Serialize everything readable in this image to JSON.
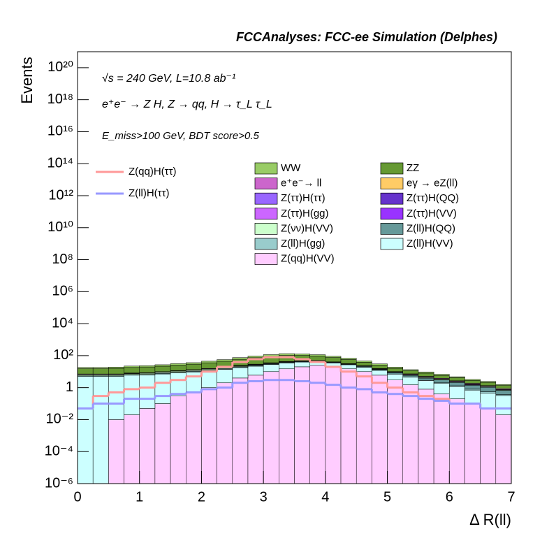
{
  "chart_data": {
    "type": "stacked-histogram",
    "title": "FCCAnalyses: FCC-ee Simulation (Delphes)",
    "x_label": "Δ R(ll)",
    "y_label": "Events",
    "annotations": [
      "√s = 240 GeV, L=10.8 ab⁻¹",
      "e⁺e⁻ → Z H, Z → qq, H → τ_L τ_L",
      "E_miss>100 GeV, BDT score>0.5"
    ],
    "log": true,
    "bins": [
      0,
      0.25,
      0.5,
      0.75,
      1,
      1.25,
      1.5,
      1.75,
      2,
      2.25,
      2.5,
      2.75,
      3,
      3.25,
      3.5,
      3.75,
      4,
      4.25,
      4.5,
      4.75,
      5,
      5.25,
      5.5,
      5.75,
      6,
      6.25,
      6.5,
      6.75,
      7
    ],
    "xlim": [
      0,
      7
    ],
    "xticks": [
      0,
      1,
      2,
      3,
      4,
      5,
      6,
      7
    ],
    "ylim": [
      1e-06,
      1e+21
    ],
    "yticks": [
      {
        "value": 1e-06,
        "label": "10⁻⁶"
      },
      {
        "value": 0.0001,
        "label": "10⁻⁴"
      },
      {
        "value": 0.01,
        "label": "10⁻²"
      },
      1,
      {
        "value": 100.0,
        "label": "10²"
      },
      {
        "value": 10000.0,
        "label": "10⁴"
      },
      {
        "value": 1000000.0,
        "label": "10⁶"
      },
      {
        "value": 100000000.0,
        "label": "10⁸"
      },
      {
        "value": 10000000000.0,
        "label": "10¹⁰"
      },
      {
        "value": 1000000000000.0,
        "label": "10¹²"
      },
      {
        "value": 100000000000000.0,
        "label": "10¹⁴"
      },
      {
        "value": 1e+16,
        "label": "10¹⁶"
      },
      {
        "value": 1e+18,
        "label": "10¹⁸"
      },
      {
        "value": 1e+20,
        "label": "10²⁰"
      }
    ],
    "series": [
      {
        "name": "WW",
        "color": "#99cc66",
        "values": [
          3,
          3,
          3,
          4,
          4,
          5,
          6,
          7,
          9,
          12,
          16,
          20,
          25,
          30,
          25,
          20,
          15,
          12,
          8,
          5,
          3,
          2,
          1.5,
          1,
          0.6,
          0.4,
          0.3,
          0.2
        ]
      },
      {
        "name": "ZZ",
        "color": "#669933",
        "values": [
          8,
          8,
          9,
          10,
          11,
          12,
          14,
          16,
          20,
          25,
          35,
          45,
          55,
          60,
          55,
          45,
          35,
          25,
          15,
          10,
          6,
          4,
          3,
          2,
          1.5,
          1,
          0.8,
          0.5
        ]
      },
      {
        "name": "e⁺e⁻→ ll",
        "color": "#cc66cc",
        "values": [
          0.5,
          0.5,
          0.5,
          0.5,
          0.5,
          0.6,
          0.6,
          0.8,
          1,
          1,
          1.2,
          1.5,
          1.5,
          1.5,
          1.5,
          1.2,
          1,
          1,
          0.8,
          0.6,
          0.5,
          0.5,
          0.4,
          0.3,
          0.2,
          0.2,
          0.1,
          0.1
        ]
      },
      {
        "name": "eγ → eZ(ll)",
        "color": "#ffcc66",
        "values": [
          0,
          0,
          0,
          0,
          0,
          0,
          0,
          0,
          0,
          0,
          0,
          0,
          0,
          0.1,
          0,
          0,
          0,
          0,
          0.1,
          0,
          0,
          0.1,
          0,
          0,
          0,
          0,
          0,
          0
        ]
      },
      {
        "name": "Z(ττ)H(ττ)",
        "color": "#9966ff",
        "values": [
          0.05,
          0.03,
          0.05,
          0.05,
          0.08,
          0.1,
          0.1,
          0.1,
          0.15,
          0.2,
          0.2,
          0.2,
          0.2,
          0.2,
          0.2,
          0.15,
          0.15,
          0.1,
          0.1,
          0.1,
          0.08,
          0.05,
          0.05,
          0.05,
          0.03,
          0.02,
          0.02,
          0.01
        ]
      },
      {
        "name": "Z(ττ)H(QQ)",
        "color": "#6633cc",
        "values": [
          0,
          0,
          0.01,
          0.01,
          0.02,
          0.02,
          0.05,
          0.05,
          0.1,
          0.2,
          0.3,
          0.4,
          0.5,
          0.5,
          0.4,
          0.3,
          0.3,
          0.2,
          0.2,
          0.15,
          0.1,
          0.1,
          0.1,
          0.05,
          0.05,
          0.02,
          0.02,
          0.01
        ]
      },
      {
        "name": "Z(ττ)H(gg)",
        "color": "#cc66ff",
        "values": [
          0,
          0,
          0,
          0.01,
          0.01,
          0.02,
          0.02,
          0.03,
          0.05,
          0.05,
          0.08,
          0.1,
          0.1,
          0.1,
          0.1,
          0.08,
          0.08,
          0.05,
          0.05,
          0.05,
          0.03,
          0.03,
          0.02,
          0.02,
          0.01,
          0.01,
          0,
          0
        ]
      },
      {
        "name": "Z(ττ)H(VV)",
        "color": "#9933ff",
        "values": [
          0.1,
          0.1,
          0.1,
          0.1,
          0.15,
          0.2,
          0.2,
          0.3,
          0.3,
          0.4,
          0.5,
          0.5,
          0.5,
          0.5,
          0.5,
          0.4,
          0.4,
          0.3,
          0.3,
          0.3,
          0.2,
          0.2,
          0.2,
          0.1,
          0.1,
          0.1,
          0.05,
          0.02
        ]
      },
      {
        "name": "Z(νν)H(VV)",
        "color": "#ccffcc",
        "values": [
          1,
          1,
          1,
          1,
          1.2,
          1.2,
          1.5,
          1.5,
          2,
          2,
          2,
          2,
          2,
          2,
          2,
          1.5,
          1.5,
          1.2,
          1,
          0.8,
          0.6,
          0.5,
          0.4,
          0.3,
          0.2,
          0.1,
          0.1,
          0.05
        ]
      },
      {
        "name": "Z(ll)H(QQ)",
        "color": "#669999",
        "values": [
          0.5,
          0.5,
          0.5,
          0.6,
          0.6,
          0.7,
          0.8,
          1,
          1.2,
          1.5,
          2,
          2.5,
          3,
          3,
          3,
          3,
          2.5,
          2,
          2,
          1.5,
          1.5,
          1.2,
          1,
          1,
          0.8,
          0.6,
          0.5,
          0.3
        ]
      },
      {
        "name": "Z(ll)H(gg)",
        "color": "#99cccc",
        "values": [
          0,
          0,
          0,
          0,
          0,
          0,
          0,
          0,
          0,
          0.1,
          0.1,
          0.1,
          0.1,
          0.1,
          0.1,
          0.1,
          0.1,
          0.1,
          0.1,
          0.1,
          0.1,
          0.1,
          0.1,
          0.1,
          0.1,
          0.1,
          0.1,
          0.05
        ]
      },
      {
        "name": "Z(ll)H(VV)",
        "color": "#ccffff",
        "values": [
          5,
          5,
          5,
          6,
          6,
          7,
          8,
          9,
          10,
          12,
          14,
          16,
          18,
          20,
          20,
          18,
          15,
          12,
          9,
          6,
          4,
          3,
          2,
          1.5,
          1,
          0.6,
          0.4,
          0.3
        ]
      },
      {
        "name": "Z(qq)H(VV)",
        "color": "#ffccff",
        "values": [
          0,
          0,
          0.01,
          0.02,
          0.05,
          0.1,
          0.3,
          0.5,
          1,
          2,
          4,
          6,
          10,
          15,
          20,
          25,
          20,
          15,
          10,
          6,
          3,
          1.5,
          0.8,
          0.4,
          0.2,
          0.1,
          0.05,
          0.02
        ]
      }
    ],
    "line_series": [
      {
        "name": "Z(qq)H(ττ)",
        "color": "#ff9999",
        "values": [
          0.05,
          0.3,
          0.5,
          0.8,
          1,
          2,
          3,
          5,
          10,
          20,
          40,
          60,
          80,
          80,
          60,
          40,
          20,
          10,
          5,
          2,
          1,
          0.5,
          0.3,
          0.2,
          0.1,
          0.1,
          0.05,
          0.05
        ]
      },
      {
        "name": "Z(ll)H(ττ)",
        "color": "#9999ff",
        "values": [
          0.05,
          0.1,
          0.1,
          0.2,
          0.2,
          0.3,
          0.4,
          0.5,
          0.8,
          1,
          2,
          2.5,
          3,
          3,
          2.5,
          2,
          1.5,
          1,
          0.8,
          0.5,
          0.4,
          0.3,
          0.2,
          0.15,
          0.1,
          0.1,
          0.05,
          0.05
        ]
      }
    ]
  }
}
